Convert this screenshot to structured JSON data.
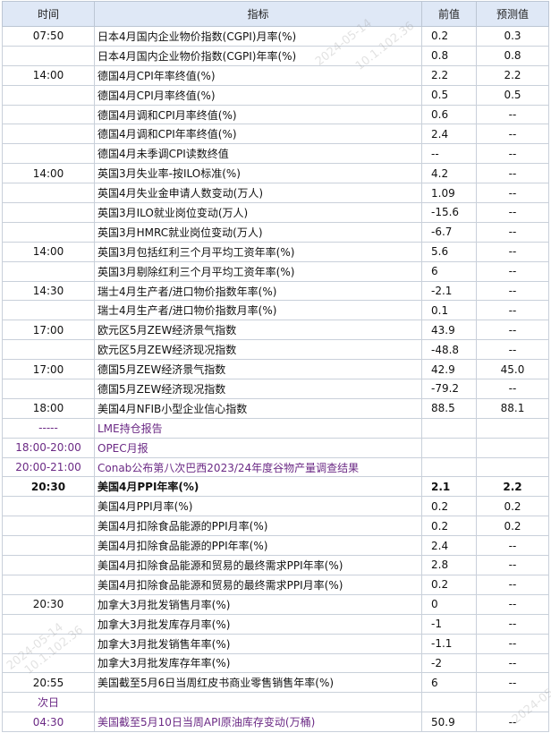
{
  "header": {
    "time": "时间",
    "indicator": "指标",
    "previous": "前值",
    "forecast": "预测值"
  },
  "rows": [
    {
      "time": "07:50",
      "indicator": "日本4月国内企业物价指数(CGPI)月率(%)",
      "previous": "0.2",
      "forecast": "0.3"
    },
    {
      "time": "",
      "indicator": "日本4月国内企业物价指数(CGPI)年率(%)",
      "previous": "0.8",
      "forecast": "0.8"
    },
    {
      "time": "14:00",
      "indicator": "德国4月CPI年率终值(%)",
      "previous": "2.2",
      "forecast": "2.2"
    },
    {
      "time": "",
      "indicator": "德国4月CPI月率终值(%)",
      "previous": "0.5",
      "forecast": "0.5"
    },
    {
      "time": "",
      "indicator": "德国4月调和CPI月率终值(%)",
      "previous": "0.6",
      "forecast": "--"
    },
    {
      "time": "",
      "indicator": "德国4月调和CPI年率终值(%)",
      "previous": "2.4",
      "forecast": "--"
    },
    {
      "time": "",
      "indicator": "德国4月未季调CPI读数终值",
      "previous": "--",
      "forecast": "--"
    },
    {
      "time": "14:00",
      "indicator": "英国3月失业率-按ILO标准(%)",
      "previous": "4.2",
      "forecast": "--"
    },
    {
      "time": "",
      "indicator": "英国4月失业金申请人数变动(万人)",
      "previous": "1.09",
      "forecast": "--"
    },
    {
      "time": "",
      "indicator": "英国3月ILO就业岗位变动(万人)",
      "previous": "-15.6",
      "forecast": "--"
    },
    {
      "time": "",
      "indicator": "英国3月HMRC就业岗位变动(万人)",
      "previous": "-6.7",
      "forecast": "--"
    },
    {
      "time": "14:00",
      "indicator": "英国3月包括红利三个月平均工资年率(%)",
      "previous": "5.6",
      "forecast": "--"
    },
    {
      "time": "",
      "indicator": "英国3月剔除红利三个月平均工资年率(%)",
      "previous": "6",
      "forecast": "--"
    },
    {
      "time": "14:30",
      "indicator": "瑞士4月生产者/进口物价指数年率(%)",
      "previous": "-2.1",
      "forecast": "--"
    },
    {
      "time": "",
      "indicator": "瑞士4月生产者/进口物价指数月率(%)",
      "previous": "0.1",
      "forecast": "--"
    },
    {
      "time": "17:00",
      "indicator": "欧元区5月ZEW经济景气指数",
      "previous": "43.9",
      "forecast": "--"
    },
    {
      "time": "",
      "indicator": "欧元区5月ZEW经济现况指数",
      "previous": "-48.8",
      "forecast": "--"
    },
    {
      "time": "17:00",
      "indicator": "德国5月ZEW经济景气指数",
      "previous": "42.9",
      "forecast": "45.0"
    },
    {
      "time": "",
      "indicator": "德国5月ZEW经济现况指数",
      "previous": "-79.2",
      "forecast": "--"
    },
    {
      "time": "18:00",
      "indicator": "美国4月NFIB小型企业信心指数",
      "previous": "88.5",
      "forecast": "88.1"
    },
    {
      "time": "-----",
      "indicator": "LME持仓报告",
      "previous": "",
      "forecast": "",
      "style": "purple"
    },
    {
      "time": "18:00-20:00",
      "indicator": "OPEC月报",
      "previous": "",
      "forecast": "",
      "style": "purple"
    },
    {
      "time": "20:00-21:00",
      "indicator": "Conab公布第八次巴西2023/24年度谷物产量调查结果",
      "previous": "",
      "forecast": "",
      "style": "purple"
    },
    {
      "time": "20:30",
      "indicator": "美国4月PPI年率(%)",
      "previous": "2.1",
      "forecast": "2.2",
      "style": "highlight"
    },
    {
      "time": "",
      "indicator": "美国4月PPI月率(%)",
      "previous": "0.2",
      "forecast": "0.2"
    },
    {
      "time": "",
      "indicator": "美国4月扣除食品能源的PPI月率(%)",
      "previous": "0.2",
      "forecast": "0.2"
    },
    {
      "time": "",
      "indicator": "美国4月扣除食品能源的PPI年率(%)",
      "previous": "2.4",
      "forecast": "--"
    },
    {
      "time": "",
      "indicator": "美国4月扣除食品能源和贸易的最终需求PPI年率(%)",
      "previous": "2.8",
      "forecast": "--"
    },
    {
      "time": "",
      "indicator": "美国4月扣除食品能源和贸易的最终需求PPI月率(%)",
      "previous": "0.2",
      "forecast": "--"
    },
    {
      "time": "20:30",
      "indicator": "加拿大3月批发销售月率(%)",
      "previous": "0",
      "forecast": "--"
    },
    {
      "time": "",
      "indicator": "加拿大3月批发库存月率(%)",
      "previous": "-1",
      "forecast": "--"
    },
    {
      "time": "",
      "indicator": "加拿大3月批发销售年率(%)",
      "previous": "-1.1",
      "forecast": "--"
    },
    {
      "time": "",
      "indicator": "加拿大3月批发库存年率(%)",
      "previous": "-2",
      "forecast": "--"
    },
    {
      "time": "20:55",
      "indicator": "美国截至5月6日当周红皮书商业零售销售年率(%)",
      "previous": "6",
      "forecast": "--"
    },
    {
      "time": "次日",
      "indicator": "",
      "previous": "",
      "forecast": "",
      "style": "nextday"
    },
    {
      "time": "04:30",
      "indicator": "美国截至5月10日当周API原油库存变动(万桶)",
      "previous": "50.9",
      "forecast": "--",
      "style": "purple"
    }
  ],
  "watermarks": [
    "2024-05-14",
    "10.1.102.36"
  ]
}
